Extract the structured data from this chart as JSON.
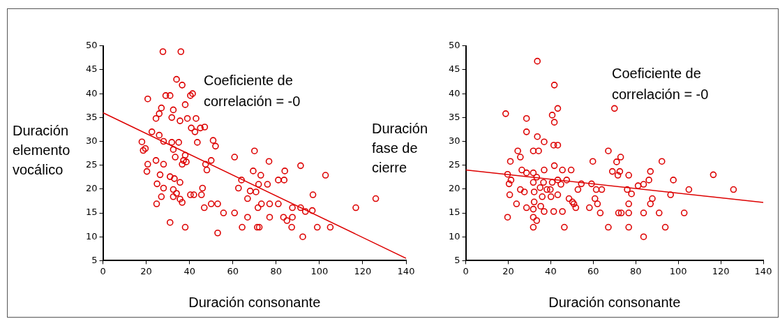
{
  "chart_data": [
    {
      "type": "scatter",
      "xlabel": "Duración consonante",
      "ylabel": "Duración elemento vocálico",
      "annotations": [
        "Coeficiente de correlación = -0"
      ],
      "xlim": [
        0,
        140
      ],
      "ylim": [
        5,
        50
      ],
      "xticks": [
        0,
        20,
        40,
        60,
        80,
        100,
        120,
        140
      ],
      "yticks": [
        5,
        10,
        15,
        20,
        25,
        30,
        35,
        40,
        45,
        50
      ],
      "grid": false,
      "legend": false,
      "series": [
        {
          "marker": "circle",
          "color": "#dd0000",
          "x": [
            27.7,
            36,
            34,
            36.6,
            20.7,
            29,
            31,
            40.4,
            41.4,
            38,
            32.5,
            31.8,
            35.6,
            39,
            43,
            26,
            24.5,
            27,
            40.8,
            45,
            47,
            22.6,
            26,
            28,
            31.8,
            32.5,
            33.4,
            18,
            18.6,
            19.6,
            35,
            43.6,
            42.5,
            50.9,
            52,
            24.5,
            28,
            20.7,
            20.3,
            36.6,
            38.5,
            38,
            47.4,
            50,
            48,
            26.4,
            31,
            33,
            35.6,
            25,
            28,
            32.5,
            34,
            32.5,
            35.6,
            40.4,
            42,
            45.5,
            46,
            27,
            24.8,
            36.6,
            31,
            38,
            46.8,
            50,
            53,
            37.2,
            60.8,
            55.7,
            53,
            68,
            64,
            62.6,
            70.7,
            70,
            76.7,
            69.4,
            72.9,
            84,
            91.3,
            83.7,
            81,
            102.8,
            71.9,
            76,
            97,
            66.8,
            126,
            116.8,
            73.2,
            77,
            81,
            71.6,
            87.5,
            91.3,
            93.5,
            96.7,
            60.8,
            66.8,
            77,
            83.4,
            85,
            87.5,
            64.3,
            71.3,
            72.2,
            87.2,
            99,
            105,
            92.3
          ],
          "values": [
            48.8,
            48.8,
            43,
            41.8,
            38.9,
            39.6,
            39.6,
            39.6,
            40,
            37.7,
            36.6,
            35,
            34.3,
            34.8,
            34.8,
            35.8,
            34.8,
            37,
            32.8,
            32.8,
            33,
            32,
            31.3,
            30,
            29.8,
            28.3,
            26.7,
            29.9,
            28.1,
            28.5,
            29.8,
            29.8,
            32,
            30.2,
            29,
            26,
            25.2,
            25.2,
            23.7,
            25.2,
            25.7,
            27.1,
            25.2,
            26,
            24,
            23,
            22.6,
            22.2,
            21.4,
            21.1,
            20.2,
            19.9,
            19.1,
            18.4,
            17.9,
            18.8,
            18.8,
            18.8,
            20.2,
            18.4,
            16.9,
            17.2,
            13,
            12,
            16.1,
            16.9,
            16.9,
            26,
            26.7,
            15,
            10.8,
            19.6,
            21.9,
            20.2,
            19.4,
            28,
            25.8,
            23.8,
            22.9,
            23.8,
            24.9,
            21.9,
            21.9,
            22.9,
            21,
            21,
            18.8,
            18,
            18,
            16.1,
            16.9,
            16.9,
            16.9,
            16.1,
            16.1,
            16.1,
            15.3,
            15.5,
            15,
            14.1,
            14.1,
            14.1,
            13.4,
            14.1,
            12,
            12,
            12,
            12,
            12,
            12,
            10
          ]
        },
        {
          "type": "line",
          "marker": "none",
          "color": "#dd0000",
          "x": [
            0,
            140
          ],
          "values": [
            36,
            5.5
          ]
        }
      ]
    },
    {
      "type": "scatter",
      "xlabel": "Duración consonante",
      "ylabel": "Duración fase de cierre",
      "annotations": [
        "Coeficiente de correlación = -0"
      ],
      "xlim": [
        0,
        140
      ],
      "ylim": [
        5,
        50
      ],
      "xticks": [
        0,
        20,
        40,
        60,
        80,
        100,
        120,
        140
      ],
      "yticks": [
        5,
        10,
        15,
        20,
        25,
        30,
        35,
        40,
        45,
        50
      ],
      "grid": false,
      "legend": false,
      "series": [
        {
          "marker": "circle",
          "color": "#dd0000",
          "x": [
            33.7,
            41.7,
            18.8,
            28.6,
            28.6,
            33.7,
            36.9,
            41.4,
            43.3,
            40.7,
            43.3,
            41.7,
            24.5,
            25.7,
            21,
            31.8,
            34.3,
            26.4,
            28.6,
            41.7,
            45.5,
            49.6,
            36.9,
            19.7,
            31.8,
            33.4,
            20.4,
            21.3,
            25.7,
            27.6,
            20.7,
            23.9,
            19.7,
            28.6,
            31.8,
            32.2,
            32.2,
            31.8,
            31.8,
            31.8,
            33.4,
            35,
            36,
            35.3,
            36.9,
            36.6,
            38.2,
            40.1,
            39.8,
            41.4,
            43.3,
            40.7,
            43.3,
            44.8,
            47.5,
            45.5,
            46.4,
            48.6,
            50.2,
            51.8,
            52.8,
            70,
            67.1,
            72.9,
            71,
            59.8,
            92.3,
            69,
            72.5,
            71.6,
            76.7,
            86.9,
            116.5,
            86.2,
            97.7,
            54.4,
            59.2,
            64,
            61.4,
            76,
            78,
            81.1,
            83.7,
            96.4,
            105,
            126,
            87.8,
            60.8,
            50.9,
            58.2,
            62,
            76.7,
            86.9,
            63.3,
            71.9,
            73.2,
            76.7,
            83.7,
            91,
            102.8,
            67.1,
            76.7,
            93.9,
            83.7
          ],
          "values": [
            46.8,
            41.8,
            35.8,
            34.8,
            32,
            31,
            29.9,
            29.2,
            29.2,
            35.5,
            36.9,
            34,
            28,
            26.7,
            25.8,
            28,
            28,
            24,
            23.4,
            24.9,
            24,
            24,
            24,
            23.1,
            23.4,
            22.5,
            21.1,
            21.9,
            19.9,
            19.4,
            18.8,
            16.9,
            14.1,
            16.1,
            21.4,
            19.4,
            17.3,
            15.8,
            14.1,
            12,
            13.4,
            20.3,
            18.4,
            16.4,
            15.3,
            21.4,
            19.9,
            18.4,
            19.9,
            15.3,
            18.8,
            21.4,
            21.9,
            21,
            21.9,
            15.3,
            12,
            18,
            17.3,
            16.1,
            19.9,
            36.9,
            28,
            26.7,
            25.7,
            25.8,
            25.8,
            23.7,
            23.7,
            22.9,
            22.9,
            23.7,
            23,
            21.9,
            21.9,
            21.1,
            21.1,
            19.9,
            19.9,
            19.9,
            19,
            20.7,
            21,
            18.8,
            19.9,
            19.9,
            18,
            18,
            16.9,
            16.1,
            16.9,
            16.9,
            16.9,
            15,
            15,
            15,
            15,
            15,
            15,
            15,
            12,
            12,
            12,
            10
          ]
        },
        {
          "type": "line",
          "marker": "none",
          "color": "#dd0000",
          "x": [
            0,
            140
          ],
          "values": [
            24,
            17.2
          ]
        }
      ]
    }
  ]
}
